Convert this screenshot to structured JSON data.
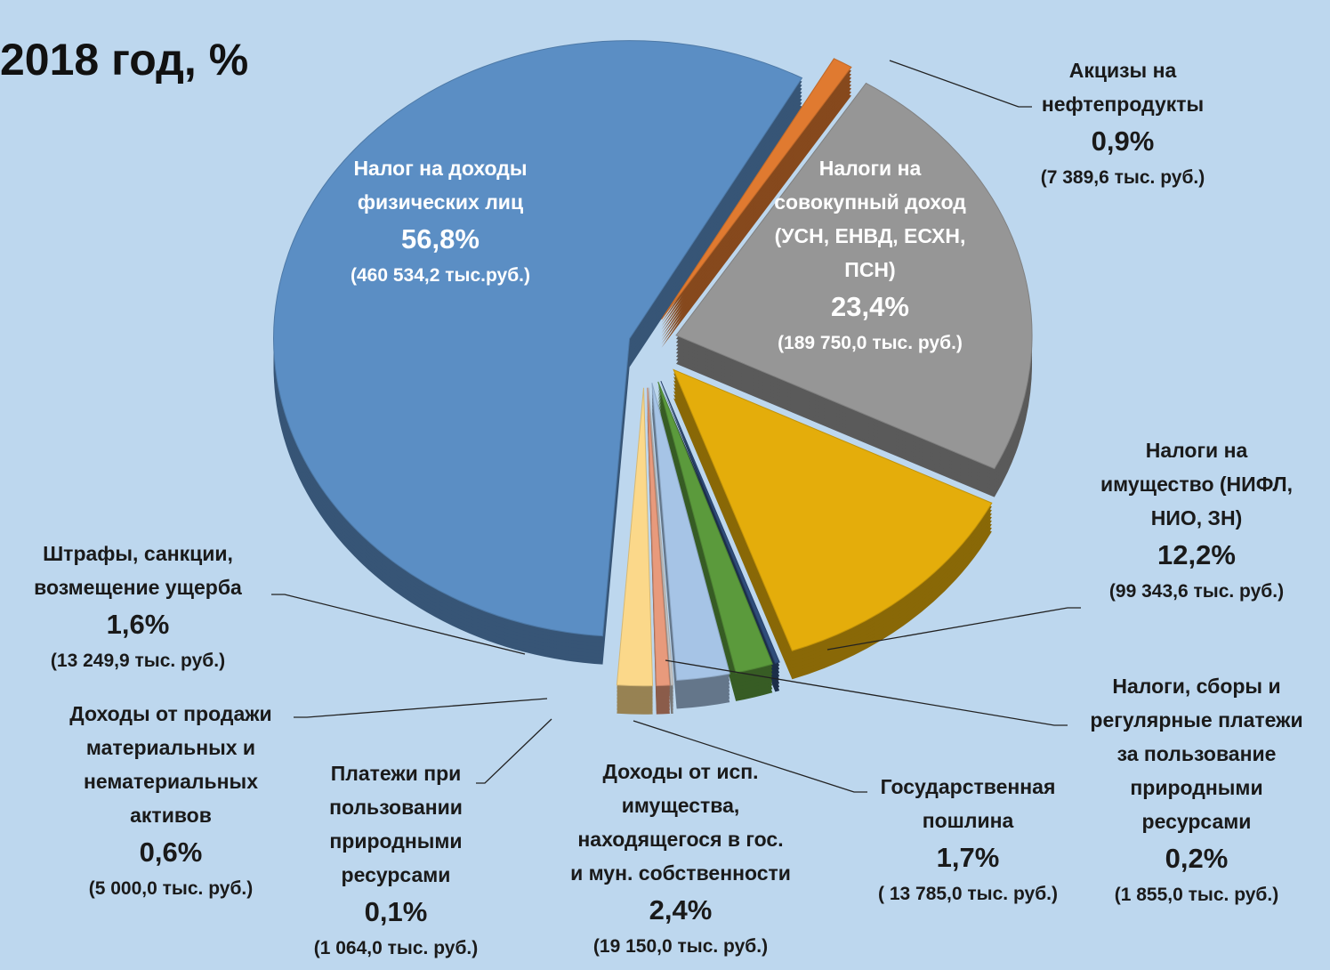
{
  "chart_data": {
    "type": "pie",
    "title": "2018 год, %",
    "categories": [
      "Акцизы на\nнефтепродукты",
      "Налоги на\nсовокупный доход\n(УСН, ЕНВД, ЕСХН,\nПСН)",
      "Налоги на\nимущество (НИФЛ,\nНИО, ЗН)",
      "Налоги, сборы и\nрегулярные платежи\nза пользование\nприродными\nресурсами",
      "Государственная\nпошлина",
      "Доходы от исп.\nимущества,\nнаходящегося в гос.\nи мун. собственности",
      "Платежи при\nпользовании\nприродными\nресурсами",
      "Доходы от продажи\nматериальных и\nнематериальных\nактивов",
      "Штрафы, санкции,\nвозмещение ущерба",
      "Налог на доходы\nфизических лиц"
    ],
    "values": [
      0.9,
      23.4,
      12.2,
      0.2,
      1.7,
      2.4,
      0.1,
      0.6,
      1.6,
      56.8
    ],
    "value_labels": [
      "0,9%",
      "23,4%",
      "12,2%",
      "0,2%",
      "1,7%",
      "2,4%",
      "0,1%",
      "0,6%",
      "1,6%",
      "56,8%"
    ],
    "amount_labels": [
      "(7 389,6 тыс. руб.)",
      "(189 750,0 тыс. руб.)",
      "(99 343,6 тыс. руб.)",
      "(1 855,0 тыс. руб.)",
      "( 13 785,0 тыс. руб.)",
      "(19 150,0 тыс. руб.)",
      "(1 064,0 тыс. руб.)",
      "(5 000,0 тыс. руб.)",
      "(13 249,9 тыс. руб.)",
      "(460 534,2 тыс.руб.)"
    ],
    "colors": [
      "#e07a30",
      "#969696",
      "#e4ad0b",
      "#2f4d7a",
      "#5b9a3c",
      "#a6c4e6",
      "#c8c8c8",
      "#e89a7c",
      "#fbd88a",
      "#5b8ec4"
    ]
  }
}
